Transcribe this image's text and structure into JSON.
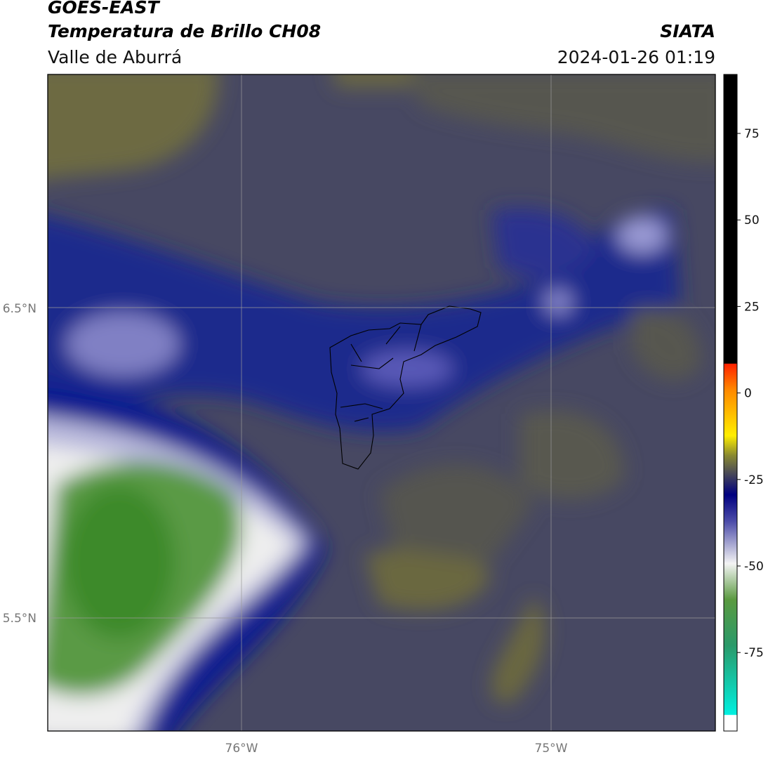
{
  "header": {
    "title": "GOES-EAST",
    "subtitle": "Temperatura de Brillo CH08",
    "region": "Valle de Aburrá",
    "source": "SIATA",
    "timestamp": "2024-01-26 01:19"
  },
  "map": {
    "lat_labels": [
      "6.5°N",
      "5.5°N"
    ],
    "lon_labels": [
      "76°W",
      "75°W"
    ]
  },
  "colorbar": {
    "ticks": [
      75,
      50,
      25,
      0,
      -25,
      -50,
      -75
    ]
  }
}
